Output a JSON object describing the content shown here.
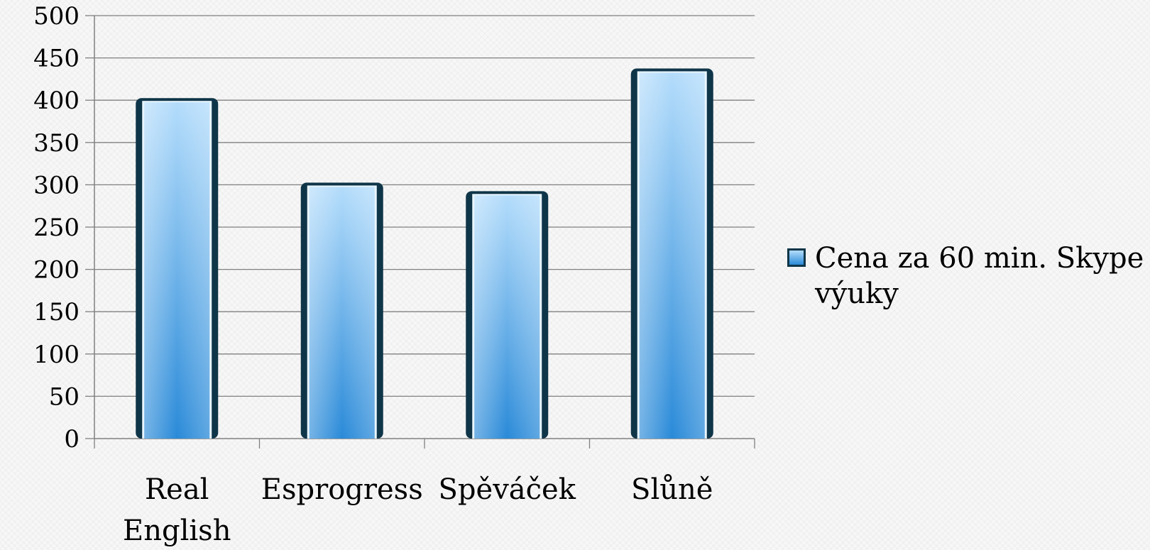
{
  "chart_data": {
    "type": "bar",
    "categories": [
      "Real English",
      "Esprogress",
      "Spěváček",
      "Slůně"
    ],
    "category_lines": [
      [
        "Real",
        "English"
      ],
      [
        "Esprogress"
      ],
      [
        "Spěváček"
      ],
      [
        "Slůně"
      ]
    ],
    "series": [
      {
        "name": "Cena za 60 min. Skype výuky",
        "values": [
          400,
          300,
          290,
          435
        ]
      }
    ],
    "legend": {
      "lines": [
        "Cena za 60 min. Skype",
        "výuky"
      ],
      "placement": "right"
    },
    "yticks": [
      0,
      50,
      100,
      150,
      200,
      250,
      300,
      350,
      400,
      450,
      500
    ],
    "ylim": [
      0,
      500
    ],
    "grid": true,
    "title": "",
    "xlabel": "",
    "ylabel": "",
    "colors": {
      "bar_light": "#b3dcfb",
      "bar_dark": "#2a8ad8",
      "bar_edge": "#0f3548",
      "grid": "#808080"
    }
  }
}
